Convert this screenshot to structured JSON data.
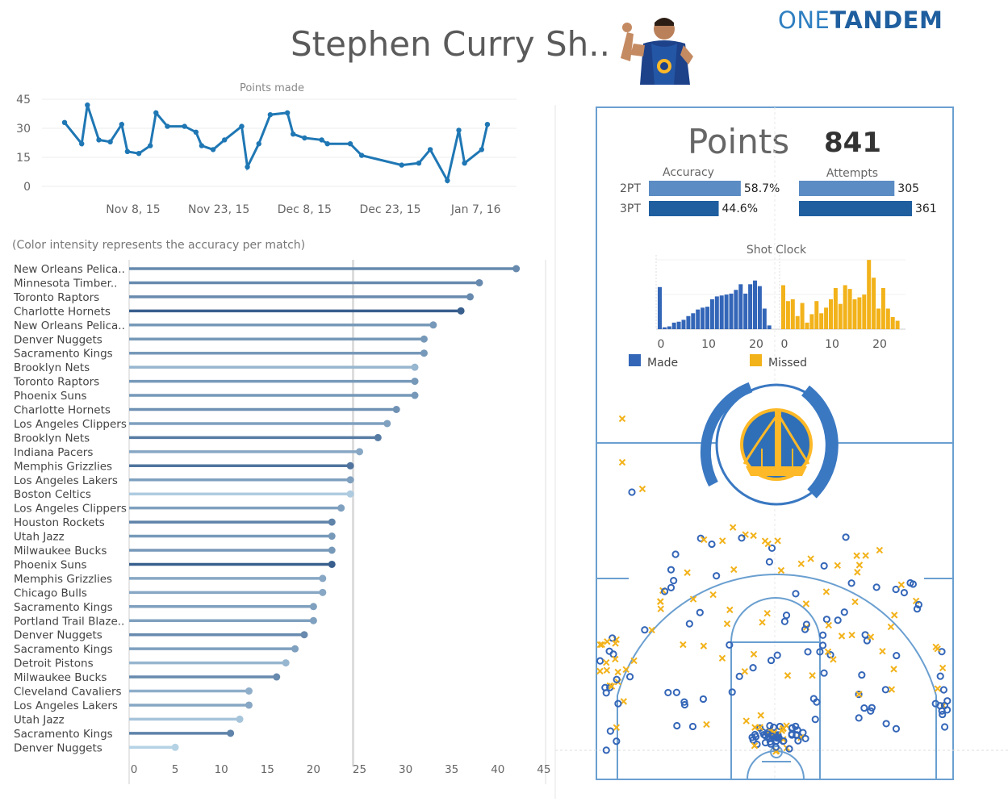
{
  "header": {
    "title": "Stephen Curry Sh..",
    "logo_left": "ONE",
    "logo_right": "TANDEM"
  },
  "note": "(Color intensity represents the accuracy per match)",
  "summary": {
    "points_label": "Points",
    "points_value": "841",
    "accuracy_label": "Accuracy",
    "attempts_label": "Attempts",
    "rows": [
      {
        "label": "2PT",
        "accuracy": 58.7,
        "accuracy_text": "58.7%",
        "attempts": 305
      },
      {
        "label": "3PT",
        "accuracy": 44.6,
        "accuracy_text": "44.6%",
        "attempts": 361
      }
    ]
  },
  "legend": {
    "made": "Made",
    "missed": "Missed"
  },
  "colors": {
    "line": "#1f77b4",
    "made": "#3466b8",
    "missed": "#f2b21a",
    "two_pt": "#5b8cc4",
    "three_pt": "#1f5f9f"
  },
  "chart_data": [
    {
      "type": "line",
      "title": "Points made",
      "ylim": [
        0,
        45
      ],
      "yticks": [
        0,
        15,
        30,
        45
      ],
      "x_tick_labels": [
        "Nov 8, 15",
        "Nov 23, 15",
        "Dec 8, 15",
        "Dec 23, 15",
        "Jan 7, 16"
      ],
      "x_tick_days": [
        8,
        23,
        38,
        53,
        68
      ],
      "x": [
        "Oct 27, 15",
        "Oct 30, 15",
        "Oct 31, 15",
        "Nov 2, 15",
        "Nov 4, 15",
        "Nov 6, 15",
        "Nov 7, 15",
        "Nov 9, 15",
        "Nov 11, 15",
        "Nov 12, 15",
        "Nov 14, 15",
        "Nov 17, 15",
        "Nov 19, 15",
        "Nov 20, 15",
        "Nov 22, 15",
        "Nov 24, 15",
        "Nov 27, 15",
        "Nov 28, 15",
        "Nov 30, 15",
        "Dec 2, 15",
        "Dec 5, 15",
        "Dec 6, 15",
        "Dec 8, 15",
        "Dec 11, 15",
        "Dec 12, 15",
        "Dec 16, 15",
        "Dec 18, 15",
        "Dec 25, 15",
        "Dec 28, 15",
        "Dec 30, 15",
        "Jan 2, 16",
        "Jan 4, 16",
        "Jan 5, 16",
        "Jan 8, 16",
        "Jan 9, 16"
      ],
      "x_days": [
        -4,
        -1,
        0,
        2,
        4,
        6,
        7,
        9,
        11,
        12,
        14,
        17,
        19,
        20,
        22,
        24,
        27,
        28,
        30,
        32,
        35,
        36,
        38,
        41,
        42,
        46,
        48,
        55,
        58,
        60,
        63,
        65,
        66,
        69,
        70
      ],
      "values": [
        33,
        22,
        42,
        24,
        23,
        32,
        18,
        17,
        21,
        38,
        31,
        31,
        28,
        21,
        19,
        24,
        31,
        10,
        22,
        37,
        38,
        27,
        25,
        24,
        22,
        22,
        16,
        11,
        12,
        19,
        3,
        29,
        12,
        19,
        32
      ]
    },
    {
      "type": "lollipop",
      "xlim": [
        0,
        45
      ],
      "xticks": [
        0,
        5,
        10,
        15,
        20,
        25,
        30,
        35,
        40,
        45
      ],
      "reference_line": 24.3,
      "categories": [
        "New Orleans Pelica..",
        "Minnesota Timber..",
        "Toronto Raptors",
        "Charlotte Hornets",
        "New Orleans Pelica..",
        "Denver Nuggets",
        "Sacramento Kings",
        "Brooklyn Nets",
        "Toronto Raptors",
        "Phoenix Suns",
        "Charlotte Hornets",
        "Los Angeles Clippers",
        "Brooklyn Nets",
        "Indiana Pacers",
        "Memphis Grizzlies",
        "Los Angeles Lakers",
        "Boston Celtics",
        "Los Angeles Clippers",
        "Houston Rockets",
        "Utah Jazz",
        "Milwaukee Bucks",
        "Phoenix Suns",
        "Memphis Grizzlies",
        "Chicago Bulls",
        "Sacramento Kings",
        "Portland Trail Blaze..",
        "Denver Nuggets",
        "Sacramento Kings",
        "Detroit Pistons",
        "Milwaukee Bucks",
        "Cleveland Cavaliers",
        "Los Angeles Lakers",
        "Utah Jazz",
        "Sacramento Kings",
        "Denver Nuggets"
      ],
      "values": [
        42,
        38,
        37,
        36,
        33,
        32,
        32,
        31,
        31,
        31,
        29,
        28,
        27,
        25,
        24,
        24,
        24,
        23,
        22,
        22,
        22,
        22,
        21,
        21,
        20,
        20,
        19,
        18,
        17,
        16,
        13,
        13,
        12,
        11,
        5
      ],
      "accuracy": [
        0.6,
        0.6,
        0.6,
        0.9,
        0.5,
        0.5,
        0.5,
        0.3,
        0.5,
        0.5,
        0.55,
        0.45,
        0.7,
        0.4,
        0.75,
        0.45,
        0.15,
        0.45,
        0.65,
        0.5,
        0.5,
        0.9,
        0.4,
        0.4,
        0.45,
        0.45,
        0.6,
        0.45,
        0.3,
        0.6,
        0.35,
        0.4,
        0.2,
        0.65,
        0.1
      ]
    },
    {
      "type": "histogram",
      "title": "Shot Clock",
      "series": [
        {
          "name": "Made",
          "x": [
            0,
            1,
            2,
            3,
            4,
            5,
            6,
            7,
            8,
            9,
            10,
            11,
            12,
            13,
            14,
            15,
            16,
            17,
            18,
            19,
            20,
            21,
            22,
            23,
            24
          ],
          "values": [
            45,
            2,
            3,
            7,
            8,
            10,
            14,
            17,
            21,
            23,
            24,
            32,
            35,
            36,
            37,
            38,
            42,
            48,
            38,
            48,
            52,
            46,
            22,
            4,
            0
          ]
        },
        {
          "name": "Missed",
          "x": [
            0,
            1,
            2,
            3,
            4,
            5,
            6,
            7,
            8,
            9,
            10,
            11,
            12,
            13,
            14,
            15,
            16,
            17,
            18,
            19,
            20,
            21,
            22,
            23,
            24
          ],
          "values": [
            47,
            30,
            32,
            14,
            28,
            7,
            16,
            30,
            17,
            23,
            32,
            44,
            27,
            47,
            43,
            32,
            34,
            37,
            74,
            55,
            22,
            44,
            22,
            13,
            9
          ]
        }
      ],
      "x_ticks": [
        0,
        10,
        20
      ]
    }
  ]
}
